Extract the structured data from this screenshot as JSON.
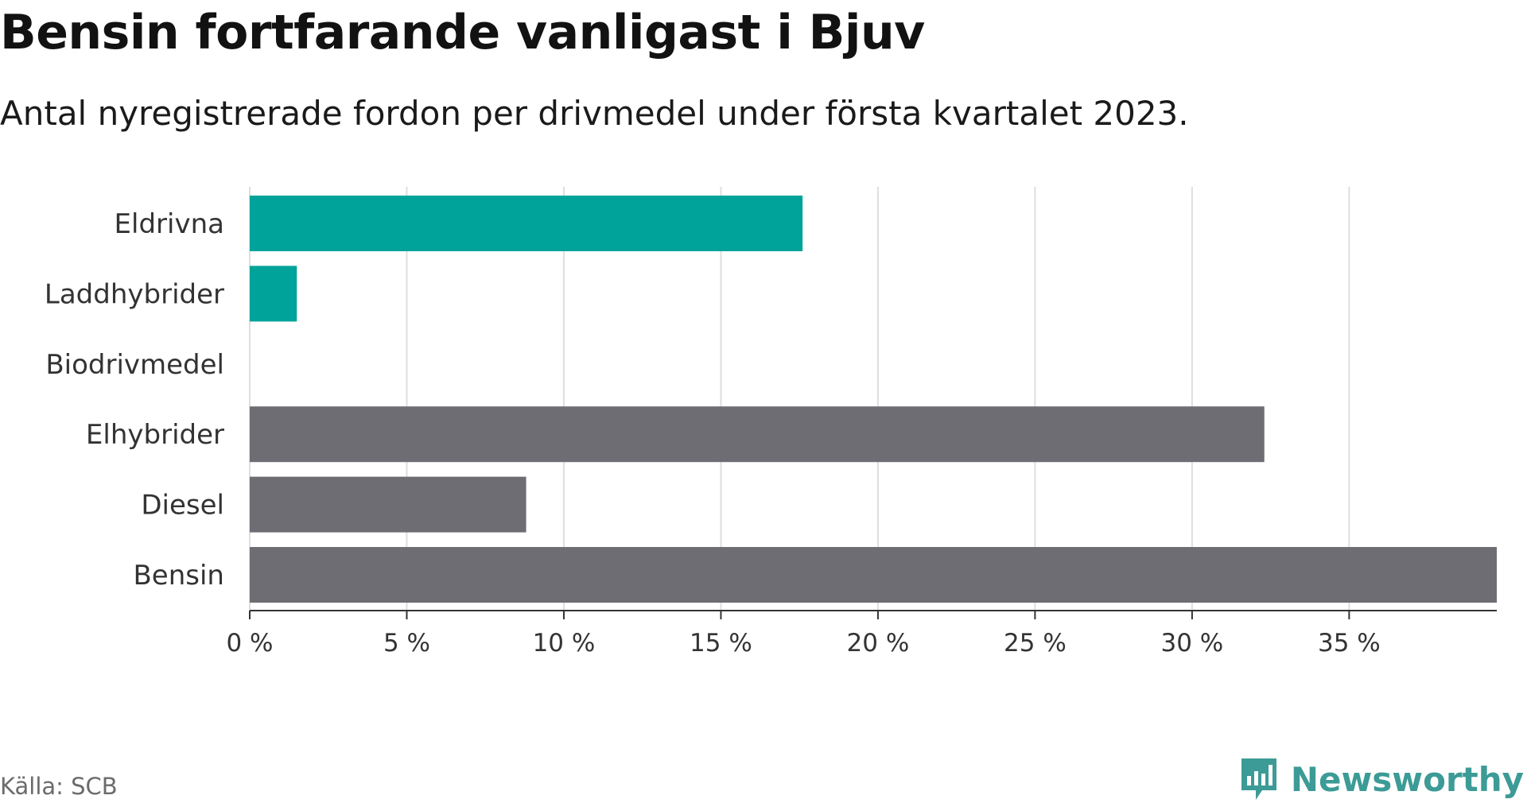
{
  "title": "Bensin fortfarande vanligast i Bjuv",
  "subtitle": "Antal nyregistrerade fordon per drivmedel under första kvartalet 2023.",
  "source": "Källa: SCB",
  "brand": "Newsworthy",
  "brand_icon": "newsworthy-logo-icon",
  "colors": {
    "highlight": "#00a39a",
    "neutral": "#6e6d73",
    "grid": "#dedede",
    "axis": "#333333"
  },
  "chart_data": {
    "type": "bar",
    "orientation": "horizontal",
    "categories": [
      "Eldrivna",
      "Laddhybrider",
      "Biodrivmedel",
      "Elhybrider",
      "Diesel",
      "Bensin"
    ],
    "values": [
      17.6,
      1.5,
      0,
      32.3,
      8.8,
      39.7
    ],
    "bar_colors": [
      "highlight",
      "highlight",
      "highlight",
      "neutral",
      "neutral",
      "neutral"
    ],
    "xlim": [
      0,
      39.7
    ],
    "xticks": [
      0,
      5,
      10,
      15,
      20,
      25,
      30,
      35
    ],
    "xtick_labels": [
      "0 %",
      "5 %",
      "10 %",
      "15 %",
      "20 %",
      "25 %",
      "30 %",
      "35 %"
    ],
    "xlabel": "",
    "ylabel": "",
    "grid": "vertical",
    "legend": "none"
  }
}
